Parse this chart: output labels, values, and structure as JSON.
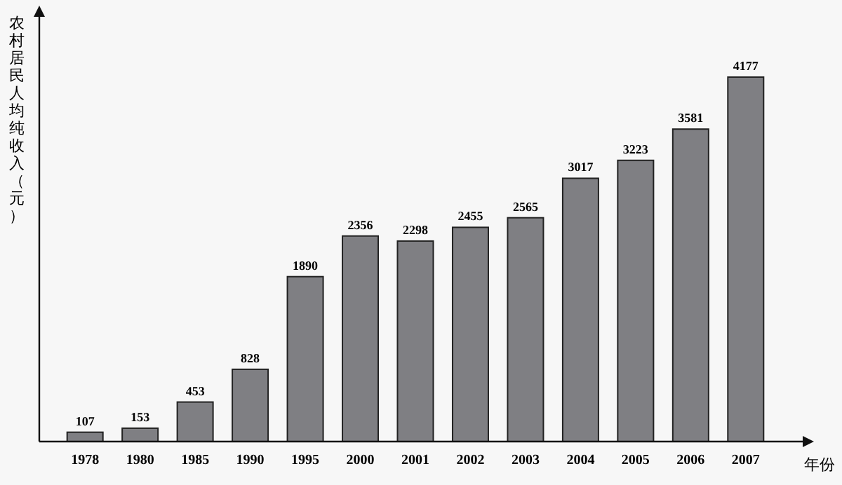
{
  "chart_data": {
    "type": "bar",
    "ylabel": "农村居民人均纯收入（元）",
    "xlabel": "年份",
    "categories": [
      "1978",
      "1980",
      "1985",
      "1990",
      "1995",
      "2000",
      "2001",
      "2002",
      "2003",
      "2004",
      "2005",
      "2006",
      "2007"
    ],
    "values": [
      107,
      153,
      453,
      828,
      1890,
      2356,
      2298,
      2455,
      2565,
      3017,
      3223,
      3581,
      4177
    ],
    "color": "#7f7f83",
    "data_labels": true
  }
}
